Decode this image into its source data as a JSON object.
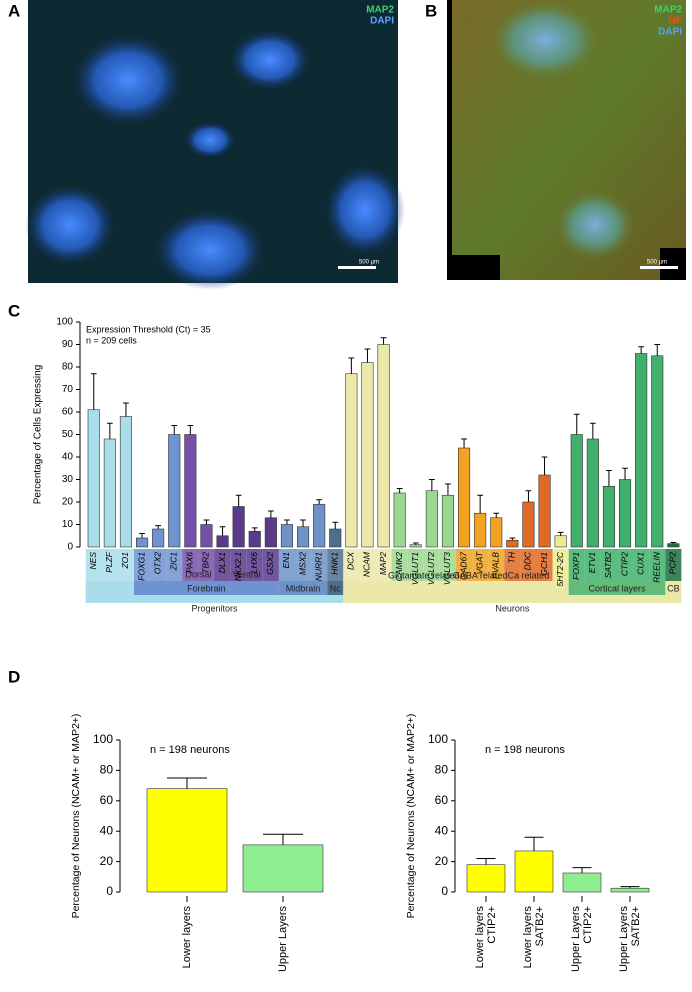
{
  "images": [
    {
      "label": "A",
      "legend": [
        {
          "text": "MAP2",
          "color": "#3fd16a"
        },
        {
          "text": "DAPI",
          "color": "#5aa0ff"
        }
      ],
      "scale": "500 µm"
    },
    {
      "label": "B",
      "legend": [
        {
          "text": "MAP2",
          "color": "#3fd16a"
        },
        {
          "text": "NF",
          "color": "#e8501a"
        },
        {
          "text": "DAPI",
          "color": "#5aa0ff"
        }
      ],
      "scale": "500 µm"
    }
  ],
  "panel_labels": [
    "C",
    "D"
  ],
  "chart_data": [
    {
      "type": "bar",
      "ylabel": "Percentage of Cells Expressing",
      "annotations": [
        "Expression Threshold (Ct) = 35",
        "n = 209 cells"
      ],
      "categories": [
        "NES",
        "PLZF",
        "ZO1",
        "FOXG1",
        "OTX2",
        "ZIC1",
        "PAX6",
        "TBR2",
        "DLX1",
        "NKX2.1",
        "LHX6",
        "GSX2",
        "EN1",
        "MSX2",
        "NURR1",
        "HNK1",
        "DCX",
        "NCAM",
        "MAP2",
        "CAMK2",
        "VGLUT1",
        "VGLUT2",
        "VGLUT3",
        "GAD67",
        "VGAT",
        "PVALB",
        "TH",
        "DDC",
        "GCH1",
        "5HT2-2C",
        "FOXP1",
        "ETV1",
        "SATB2",
        "CTIP2",
        "CUX1",
        "REELIN",
        "PCP2"
      ],
      "values": [
        61,
        48,
        58,
        4,
        8,
        50,
        50,
        10,
        5,
        18,
        7,
        13,
        10,
        9,
        19,
        8,
        77,
        82,
        90,
        24,
        1,
        25,
        23,
        44,
        15,
        13,
        3,
        20,
        32,
        5,
        50,
        48,
        27,
        30,
        86,
        85,
        1.5
      ],
      "errors": [
        16,
        7,
        6,
        2,
        1.5,
        4,
        4,
        2,
        4,
        5,
        1.5,
        3,
        2,
        3,
        2,
        3,
        7,
        6,
        3,
        2,
        0.8,
        5,
        5,
        4,
        8,
        2,
        1,
        5,
        8,
        1.5,
        9,
        7,
        7,
        5,
        3,
        5,
        0.5
      ],
      "colors": [
        "#a9dde9",
        "#a9dde9",
        "#a9dde9",
        "#6f93d1",
        "#6f93d1",
        "#6f93d1",
        "#7550a8",
        "#7550a8",
        "#5b3a8c",
        "#5b3a8c",
        "#5b3a8c",
        "#5b3a8c",
        "#6d93c9",
        "#6d93c9",
        "#6d93c9",
        "#4d6f8e",
        "#ebe8a9",
        "#ebe8a9",
        "#ebe8a9",
        "#9bd88f",
        "#9bd88f",
        "#9bd88f",
        "#9bd88f",
        "#f2a322",
        "#f2a322",
        "#f2a322",
        "#e06a24",
        "#e06a24",
        "#e06a24",
        "#ecec8c",
        "#40b06c",
        "#40b06c",
        "#40b06c",
        "#40b06c",
        "#40b06c",
        "#40b06c",
        "#1b6e40"
      ],
      "groups": [
        "Dorsal",
        "Ventral",
        "Glutamate related",
        "GABA related",
        "Ca related",
        "Forebrain",
        "Midbrain",
        "Nc",
        "Cortical layers",
        "CB",
        "Progenitors",
        "Neurons"
      ],
      "ylim": [
        0,
        100
      ],
      "yticks": [
        0,
        10,
        20,
        30,
        40,
        50,
        60,
        70,
        80,
        90,
        100
      ]
    },
    {
      "type": "bar",
      "ylabel": "Percentage of Neurons (NCAM+ or MAP2+)",
      "annotations": [
        "n = 198 neurons"
      ],
      "categories": [
        [
          "Lower layers"
        ],
        [
          "Upper Layers"
        ]
      ],
      "values": [
        68,
        31
      ],
      "errors": [
        7,
        7
      ],
      "colors": [
        "#ffff00",
        "#90ee90"
      ],
      "ylim": [
        0,
        100
      ],
      "yticks": [
        0,
        20,
        40,
        60,
        80,
        100
      ]
    },
    {
      "type": "bar",
      "ylabel": "Percentage of Neurons (NCAM+ or MAP2+)",
      "annotations": [
        "n = 198 neurons"
      ],
      "categories": [
        [
          "Lower layers",
          "CTIP2+"
        ],
        [
          "Lower layers",
          "SATB2+"
        ],
        [
          "Upper Layers",
          "CTIP2+"
        ],
        [
          "Upper Layers",
          "SATB2+"
        ]
      ],
      "values": [
        18,
        27,
        12.5,
        2.5
      ],
      "errors": [
        4,
        9,
        3.5,
        1
      ],
      "colors": [
        "#ffff00",
        "#ffff00",
        "#90ee90",
        "#90ee90"
      ],
      "ylim": [
        0,
        100
      ],
      "yticks": [
        0,
        20,
        40,
        60,
        80,
        100
      ]
    }
  ]
}
